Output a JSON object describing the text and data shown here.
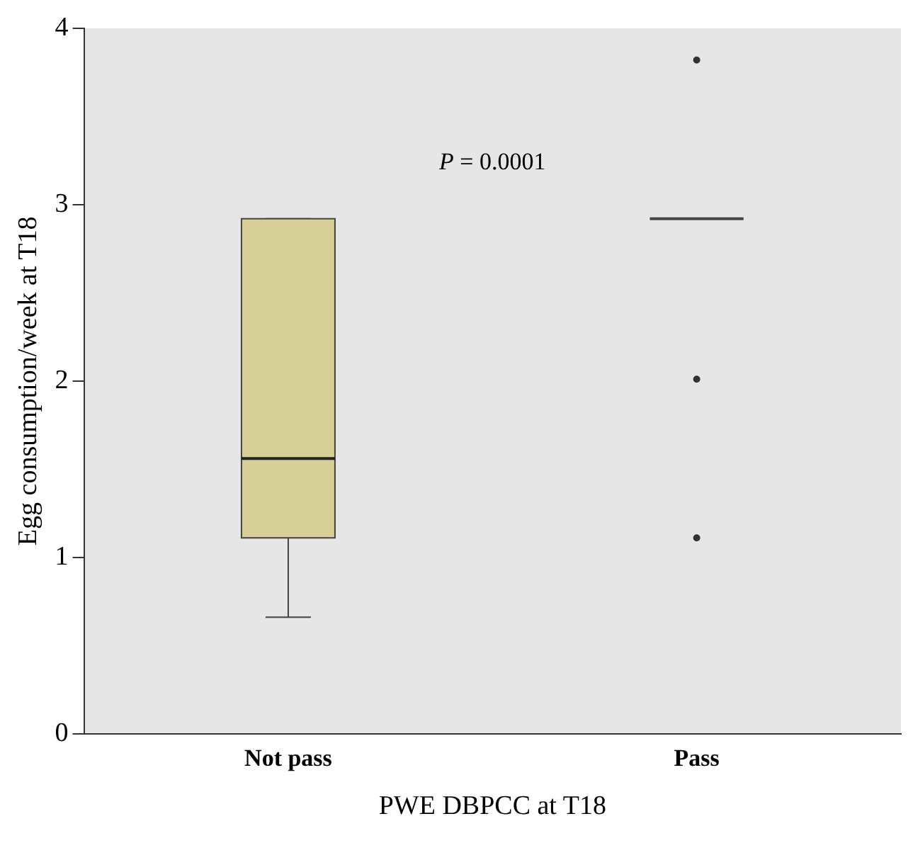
{
  "chart_data": {
    "type": "box",
    "xlabel": "PWE DBPCC at T18",
    "ylabel": "Egg consumption/week at T18",
    "categories": [
      "Not pass",
      "Pass"
    ],
    "boxes": [
      {
        "low": 0.66,
        "q1": 1.11,
        "median": 1.56,
        "q3": 2.92,
        "high": 2.92
      },
      {
        "low": 2.92,
        "q1": 2.92,
        "median": 2.92,
        "q3": 2.92,
        "high": 2.92,
        "outliers": [
          3.82,
          2.01,
          1.11
        ]
      }
    ],
    "colors": [
      "#d6cf96",
      "#444444"
    ],
    "ylim": [
      0,
      4
    ],
    "yticks": [
      0,
      1,
      2,
      3,
      4
    ],
    "grid": false,
    "legend": false,
    "annotations": [
      "P = 0.0001"
    ]
  }
}
